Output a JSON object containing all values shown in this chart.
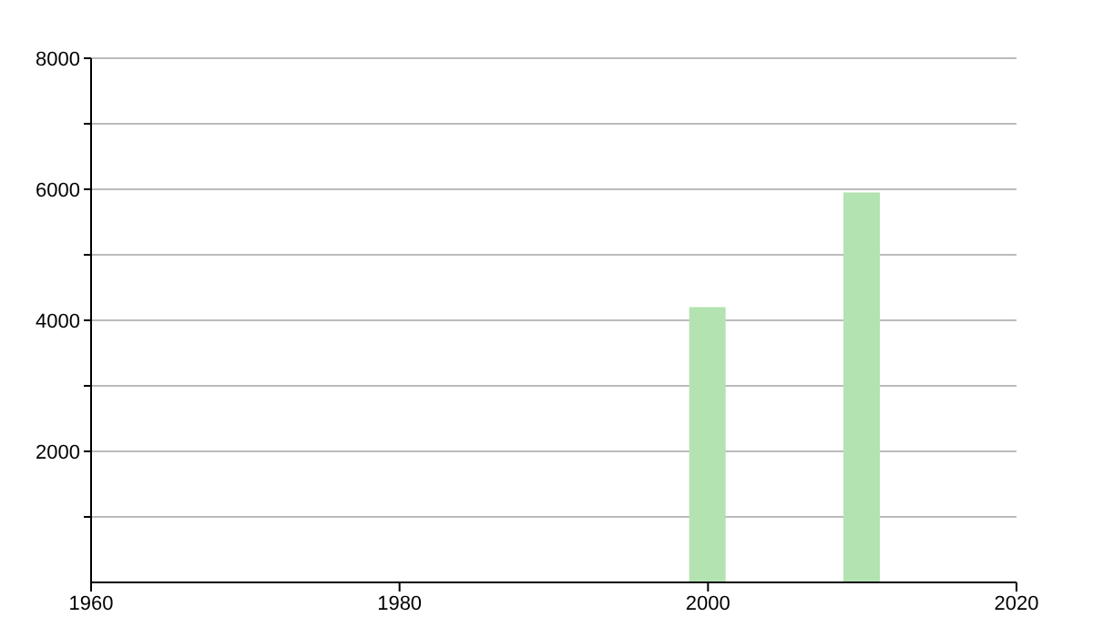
{
  "chart_data": {
    "type": "bar",
    "x": [
      2000,
      2010
    ],
    "values": [
      4200,
      5950
    ],
    "color": "#b3e3b0",
    "xlim": [
      1960,
      2020
    ],
    "xticks": [
      1960,
      1980,
      2000,
      2020
    ],
    "ylim": [
      0,
      8000
    ],
    "yticks": [
      {
        "value": 1000,
        "label": null
      },
      2000,
      {
        "value": 3000,
        "label": null
      },
      4000,
      {
        "value": 5000,
        "label": null
      },
      6000,
      {
        "value": 7000,
        "label": null
      },
      8000
    ],
    "grid": "y"
  }
}
